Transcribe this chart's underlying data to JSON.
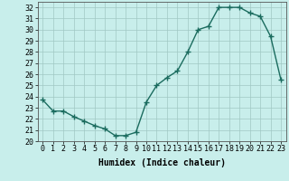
{
  "xlabel": "Humidex (Indice chaleur)",
  "x": [
    0,
    1,
    2,
    3,
    4,
    5,
    6,
    7,
    8,
    9,
    10,
    11,
    12,
    13,
    14,
    15,
    16,
    17,
    18,
    19,
    20,
    21,
    22,
    23
  ],
  "y": [
    23.7,
    22.7,
    22.7,
    22.2,
    21.8,
    21.4,
    21.1,
    20.5,
    20.5,
    20.8,
    23.5,
    25.0,
    25.7,
    26.3,
    28.0,
    30.0,
    30.3,
    32.0,
    32.0,
    32.0,
    31.5,
    31.2,
    29.4,
    25.5
  ],
  "line_color": "#1a6b5e",
  "marker": "+",
  "markersize": 4,
  "linewidth": 1.0,
  "bg_color": "#c8eeeb",
  "grid_color": "#a0c8c4",
  "ylim": [
    20,
    32.5
  ],
  "xlim": [
    -0.5,
    23.5
  ],
  "yticks": [
    20,
    21,
    22,
    23,
    24,
    25,
    26,
    27,
    28,
    29,
    30,
    31,
    32
  ],
  "xticks": [
    0,
    1,
    2,
    3,
    4,
    5,
    6,
    7,
    8,
    9,
    10,
    11,
    12,
    13,
    14,
    15,
    16,
    17,
    18,
    19,
    20,
    21,
    22,
    23
  ],
  "label_fontsize": 7,
  "tick_fontsize": 6
}
